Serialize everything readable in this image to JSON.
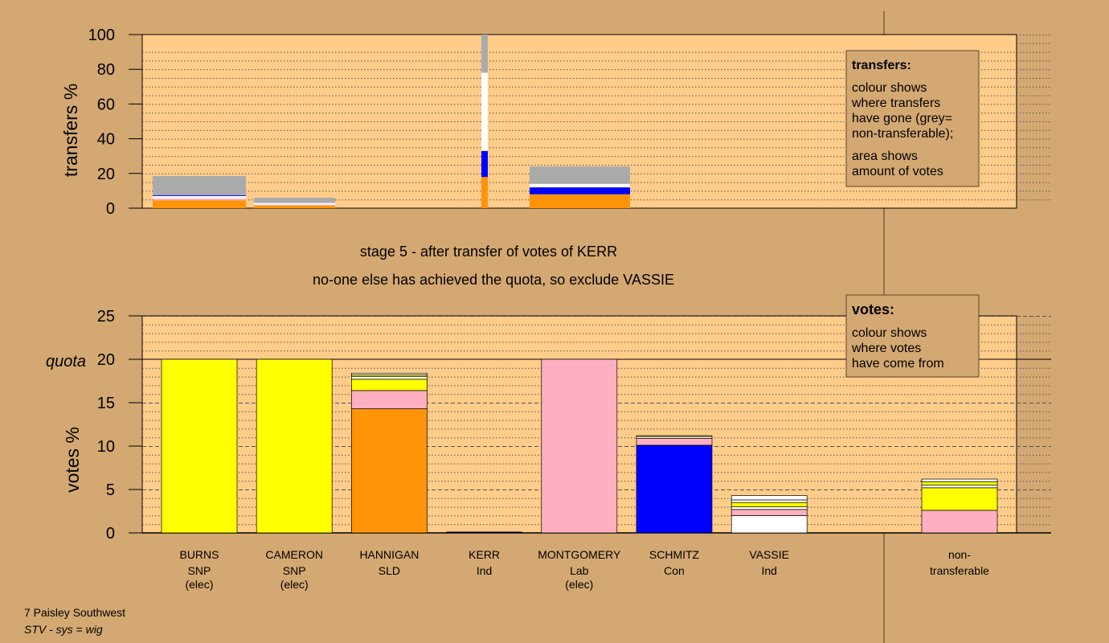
{
  "colors": {
    "background": "#d4a872",
    "plot_bg": "#ffcc8a",
    "SNP": "#ffff00",
    "SLD": "#ff9408",
    "Lab": "#ffb0c0",
    "Con": "#0000ff",
    "Ind": "#ffffff",
    "nontransferable": "#aaaaaa"
  },
  "stage_line1": "stage 5 - after transfer of votes of KERR",
  "stage_line2": "no-one else has achieved the quota, so exclude VASSIE",
  "footer": {
    "line1": "7 Paisley Southwest",
    "line2": "STV - sys = wig"
  },
  "legend_transfers": {
    "title": "transfers:",
    "lines": [
      "colour shows",
      "where transfers",
      "have gone (grey=",
      "non-transferable);"
    ],
    "lines2": [
      "area shows",
      "amount of votes"
    ]
  },
  "legend_votes": {
    "title": "votes:",
    "lines": [
      "colour shows",
      "where votes",
      "have come from"
    ]
  },
  "chart_data": [
    {
      "type": "bar",
      "stacked": true,
      "ylabel": "transfers %",
      "ylim": [
        0,
        100
      ],
      "yticks": [
        0,
        20,
        40,
        60,
        80,
        100
      ],
      "grid": true,
      "categories": [
        "BURNS",
        "CAMERON",
        "HANNIGAN",
        "KERR",
        "MONTGOMERY",
        "SCHMITZ",
        "VASSIE"
      ],
      "bars": [
        {
          "candidate": "BURNS",
          "segments": [
            {
              "party": "SLD",
              "value": 4.5
            },
            {
              "party": "Lab",
              "value": 1
            },
            {
              "party": "Ind",
              "value": 1.5
            },
            {
              "party": "Con",
              "value": 0.5
            },
            {
              "party": "nontransferable",
              "value": 11
            }
          ]
        },
        {
          "candidate": "CAMERON",
          "segments": [
            {
              "party": "SLD",
              "value": 1.5
            },
            {
              "party": "Lab",
              "value": 0.5
            },
            {
              "party": "Ind",
              "value": 1
            },
            {
              "party": "nontransferable",
              "value": 3
            }
          ]
        },
        {
          "candidate": "KERR",
          "segments": [
            {
              "party": "SLD",
              "value": 18
            },
            {
              "party": "Con",
              "value": 15
            },
            {
              "party": "Ind",
              "value": 45
            },
            {
              "party": "nontransferable",
              "value": 22
            }
          ]
        },
        {
          "candidate": "MONTGOMERY",
          "segments": [
            {
              "party": "SLD",
              "value": 8
            },
            {
              "party": "Con",
              "value": 4
            },
            {
              "party": "Ind",
              "value": 2
            },
            {
              "party": "nontransferable",
              "value": 10
            }
          ]
        }
      ]
    },
    {
      "type": "bar",
      "stacked": true,
      "ylabel": "votes %",
      "ylim": [
        0,
        25
      ],
      "yticks": [
        0,
        5,
        10,
        15,
        20,
        25
      ],
      "quota": 20,
      "quota_label": "quota",
      "grid": true,
      "candidates": [
        {
          "name": "BURNS",
          "party": "SNP",
          "status": "(elec)",
          "segments": [
            {
              "party": "SNP",
              "value": 20
            }
          ]
        },
        {
          "name": "CAMERON",
          "party": "SNP",
          "status": "(elec)",
          "segments": [
            {
              "party": "SNP",
              "value": 20
            }
          ]
        },
        {
          "name": "HANNIGAN",
          "party": "SLD",
          "status": "",
          "segments": [
            {
              "party": "SLD",
              "value": 14.3
            },
            {
              "party": "Lab",
              "value": 2.1
            },
            {
              "party": "SNP",
              "value": 1.3
            },
            {
              "party": "Ind",
              "value": 0.3
            },
            {
              "party": "SNP",
              "value": 0.2
            },
            {
              "party": "Ind",
              "value": 0.2
            }
          ]
        },
        {
          "name": "KERR",
          "party": "Ind",
          "status": "",
          "segments": [
            {
              "party": "Ind",
              "value": 0
            }
          ]
        },
        {
          "name": "MONTGOMERY",
          "party": "Lab",
          "status": "(elec)",
          "segments": [
            {
              "party": "Lab",
              "value": 20
            }
          ]
        },
        {
          "name": "SCHMITZ",
          "party": "Con",
          "status": "",
          "segments": [
            {
              "party": "Con",
              "value": 10.1
            },
            {
              "party": "Lab",
              "value": 0.8
            },
            {
              "party": "Ind",
              "value": 0.2
            },
            {
              "party": "SNP",
              "value": 0.1
            }
          ]
        },
        {
          "name": "VASSIE",
          "party": "Ind",
          "status": "",
          "segments": [
            {
              "party": "Ind",
              "value": 2.0
            },
            {
              "party": "Lab",
              "value": 0.7
            },
            {
              "party": "Ind",
              "value": 0.3
            },
            {
              "party": "SNP",
              "value": 0.5
            },
            {
              "party": "Ind",
              "value": 0.3
            },
            {
              "party": "Ind",
              "value": 0.5
            }
          ]
        }
      ],
      "nontransferable": {
        "label1": "non-",
        "label2": "transferable",
        "segments": [
          {
            "party": "Lab",
            "value": 2.6
          },
          {
            "party": "SNP",
            "value": 2.6
          },
          {
            "party": "Ind",
            "value": 0.3
          },
          {
            "party": "SNP",
            "value": 0.4
          },
          {
            "party": "Ind",
            "value": 0.3
          }
        ]
      }
    }
  ]
}
